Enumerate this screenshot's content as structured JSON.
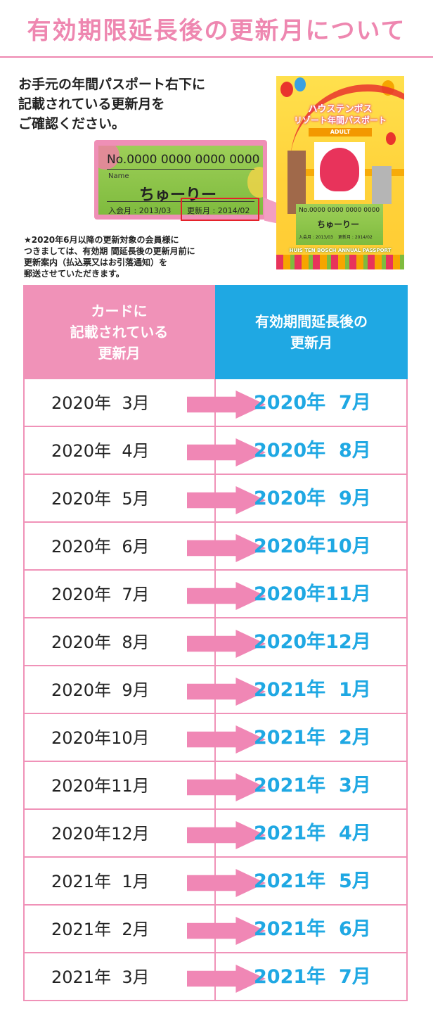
{
  "title": "有効期限延長後の更新月について",
  "intro": [
    "お手元の年間パスポート右下に",
    "記載されている更新月を",
    "ご確認ください。"
  ],
  "card_sample": {
    "number": "No.0000 0000 0000 0000",
    "name_label": "Name",
    "name": "ちゅーりー",
    "join": "入会月 : 2013/03",
    "renewal": "更新月 : 2014/02"
  },
  "passport": {
    "title_line1": "ハウステンボス",
    "title_line2": "リゾート年間パスポート",
    "category": "ADULT",
    "number": "No.0000 0000 0000 0000",
    "name": "ちゅーりー",
    "join": "入会月 : 2013/03",
    "renewal": "更新月 : 2014/02",
    "footer": "HUIS TEN BOSCH ANNUAL PASSPORT"
  },
  "note": [
    "★2020年6月以降の更新対象の会員様に",
    "つきましては、有効期 間延長後の更新月前に",
    "更新案内（払込票又はお引落通知）を",
    "郵送させていただきます。"
  ],
  "table": {
    "header_left": [
      "カードに",
      "記載されている",
      "更新月"
    ],
    "header_right": [
      "有効期間延長後の",
      "更新月"
    ],
    "rows": [
      {
        "from": "2020年  3月",
        "to": "2020年  7月"
      },
      {
        "from": "2020年  4月",
        "to": "2020年  8月"
      },
      {
        "from": "2020年  5月",
        "to": "2020年  9月"
      },
      {
        "from": "2020年  6月",
        "to": "2020年10月"
      },
      {
        "from": "2020年  7月",
        "to": "2020年11月"
      },
      {
        "from": "2020年  8月",
        "to": "2020年12月"
      },
      {
        "from": "2020年  9月",
        "to": "2021年  1月"
      },
      {
        "from": "2020年10月",
        "to": "2021年  2月"
      },
      {
        "from": "2020年11月",
        "to": "2021年  3月"
      },
      {
        "from": "2020年12月",
        "to": "2021年  4月"
      },
      {
        "from": "2021年  1月",
        "to": "2021年  5月"
      },
      {
        "from": "2021年  2月",
        "to": "2021年  6月"
      },
      {
        "from": "2021年  3月",
        "to": "2021年  7月"
      }
    ]
  },
  "colors": {
    "pink": "#f092b8",
    "blue": "#1fa8e3",
    "title_pink": "#ee87b0"
  }
}
